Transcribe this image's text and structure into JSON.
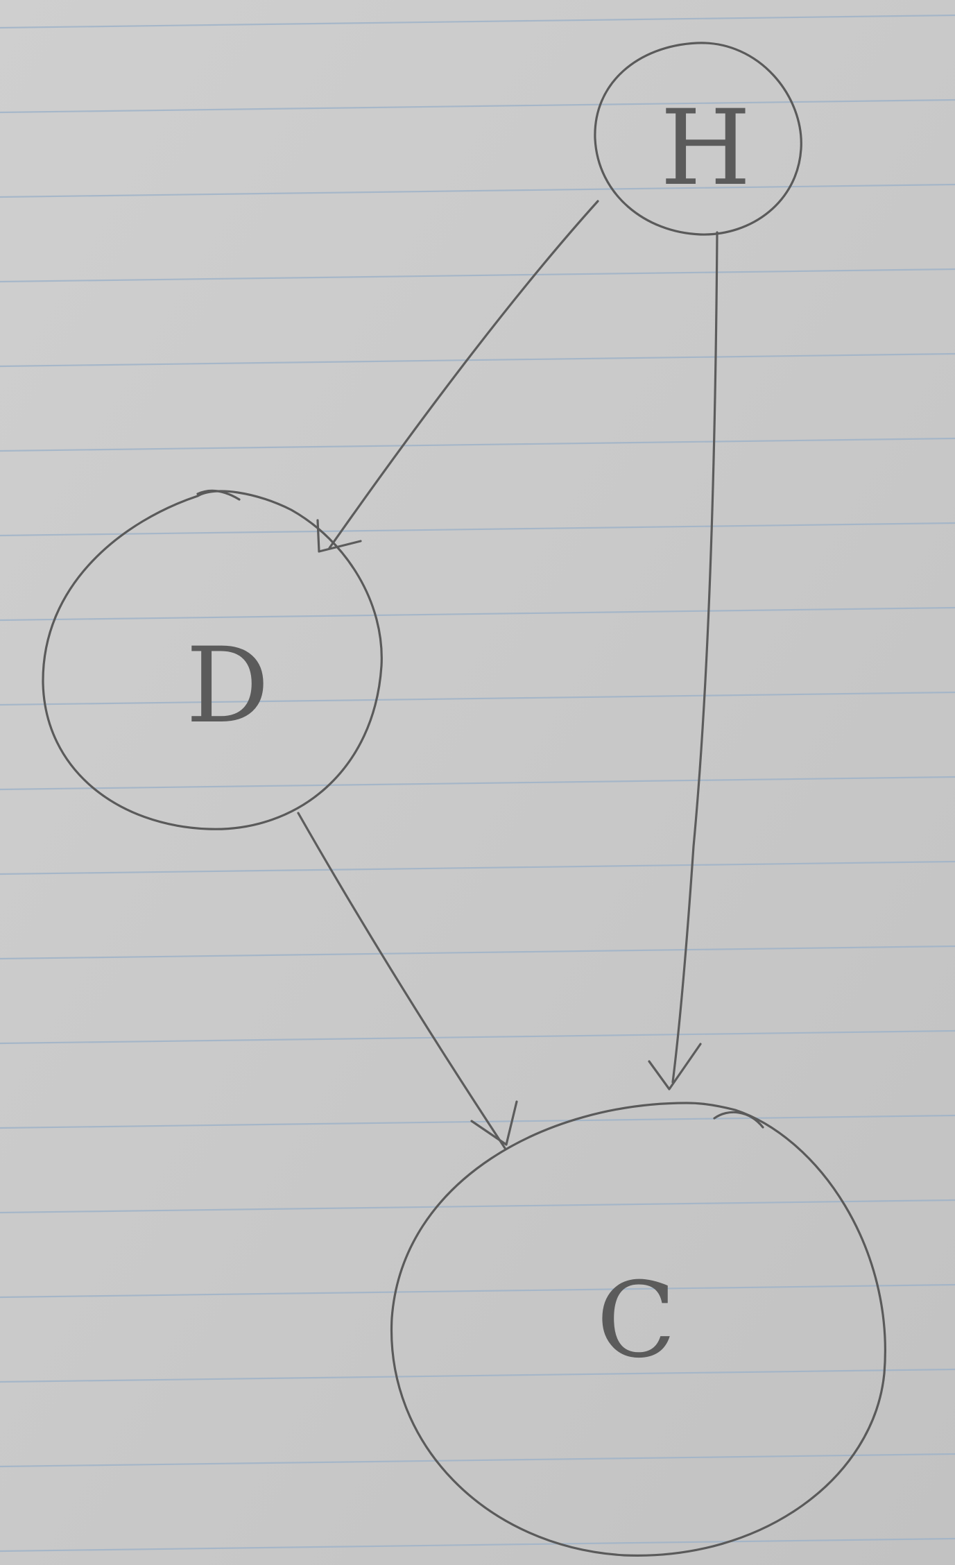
{
  "diagram": {
    "type": "directed-graph",
    "nodes": [
      {
        "id": "H",
        "label": "H"
      },
      {
        "id": "D",
        "label": "D"
      },
      {
        "id": "C",
        "label": "C"
      }
    ],
    "edges": [
      {
        "from": "H",
        "to": "D"
      },
      {
        "from": "H",
        "to": "C"
      },
      {
        "from": "D",
        "to": "C"
      }
    ]
  },
  "colors": {
    "paper": "#c9c9c9",
    "rule_line": "#9fb3c8",
    "pencil": "#5a5a5a"
  }
}
